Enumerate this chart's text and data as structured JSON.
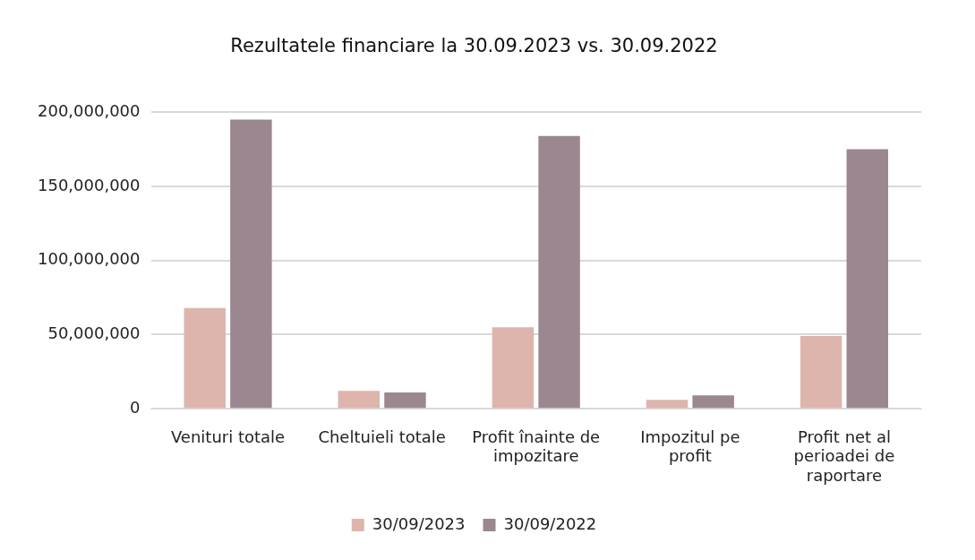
{
  "chart_data": {
    "type": "bar",
    "title": "Rezultatele financiare la 30.09.2023 vs. 30.09.2022",
    "categories": [
      "Venituri totale",
      "Cheltuieli totale",
      "Profit înainte de impozitare",
      "Impozitul pe profit",
      "Profit net al perioadei de raportare"
    ],
    "series": [
      {
        "name": "30/09/2023",
        "color": "#ddb5ac",
        "values": [
          68000000,
          12000000,
          55000000,
          6000000,
          49000000
        ]
      },
      {
        "name": "30/09/2022",
        "color": "#9b8790",
        "values": [
          195000000,
          11000000,
          184000000,
          9000000,
          175000000
        ]
      }
    ],
    "ylim": [
      0,
      200000000
    ],
    "yticks": [
      {
        "value": 0,
        "label": "0"
      },
      {
        "value": 50000000,
        "label": "50,000,000"
      },
      {
        "value": 100000000,
        "label": "100,000,000"
      },
      {
        "value": 150000000,
        "label": "150,000,000"
      },
      {
        "value": 200000000,
        "label": "200,000,000"
      }
    ],
    "grid": "y",
    "legend": "bottom"
  }
}
